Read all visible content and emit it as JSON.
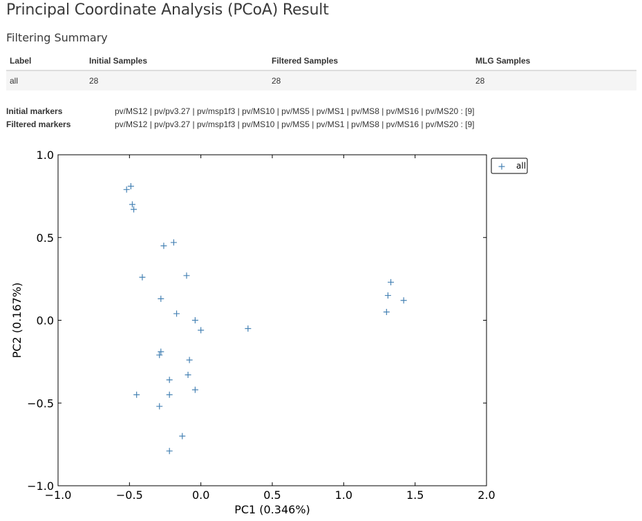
{
  "page": {
    "title": "Principal Coordinate Analysis (PCoA) Result",
    "summary_title": "Filtering Summary"
  },
  "summary": {
    "headers": [
      "Label",
      "Initial Samples",
      "Filtered Samples",
      "MLG Samples"
    ],
    "row": [
      "all",
      "28",
      "28",
      "28"
    ]
  },
  "markers": {
    "initial_label": "Initial markers",
    "initial_value": "pv/MS12 | pv/pv3.27 | pv/msp1f3 | pv/MS10 | pv/MS5 | pv/MS1 | pv/MS8 | pv/MS16 | pv/MS20 : [9]",
    "filtered_label": "Filtered markers",
    "filtered_value": "pv/MS12 | pv/pv3.27 | pv/msp1f3 | pv/MS10 | pv/MS5 | pv/MS1 | pv/MS8 | pv/MS16 | pv/MS20 : [9]"
  },
  "chart_data": {
    "type": "scatter",
    "xlabel": "PC1 (0.346%)",
    "ylabel": "PC2 (0.167%)",
    "xlim": [
      -1.0,
      2.0
    ],
    "ylim": [
      -1.0,
      1.0
    ],
    "xticks": [
      -1.0,
      -0.5,
      0.0,
      0.5,
      1.0,
      1.5,
      2.0
    ],
    "yticks": [
      -1.0,
      -0.5,
      0.0,
      0.5,
      1.0
    ],
    "xtick_labels": [
      "−1.0",
      "−0.5",
      "0.0",
      "0.5",
      "1.0",
      "1.5",
      "2.0"
    ],
    "ytick_labels": [
      "−1.0",
      "−0.5",
      "0.0",
      "0.5",
      "1.0"
    ],
    "grid": false,
    "legend_placement": "outside-top-right",
    "marker": "+",
    "series": [
      {
        "name": "all",
        "color": "#4682b4",
        "x": [
          -0.52,
          -0.49,
          -0.48,
          -0.47,
          -0.26,
          -0.19,
          -0.41,
          -0.1,
          -0.28,
          -0.17,
          -0.04,
          0.0,
          0.33,
          -0.29,
          -0.28,
          -0.08,
          -0.22,
          -0.09,
          -0.45,
          -0.22,
          -0.04,
          -0.29,
          -0.13,
          -0.22,
          1.33,
          1.31,
          1.42,
          1.3
        ],
        "y": [
          0.79,
          0.81,
          0.7,
          0.67,
          0.45,
          0.47,
          0.26,
          0.27,
          0.13,
          0.04,
          0.0,
          -0.06,
          -0.05,
          -0.21,
          -0.19,
          -0.24,
          -0.36,
          -0.33,
          -0.45,
          -0.45,
          -0.42,
          -0.52,
          -0.7,
          -0.79,
          0.23,
          0.15,
          0.12,
          0.05
        ]
      }
    ]
  }
}
